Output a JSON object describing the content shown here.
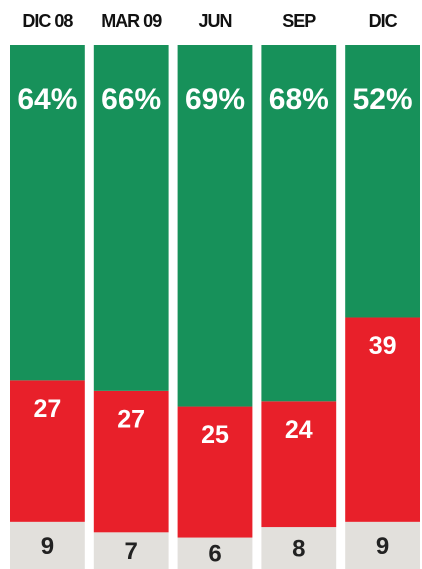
{
  "chart_data": {
    "type": "stacked_bar",
    "categories": [
      "DIC 08",
      "MAR 09",
      "JUN",
      "SEP",
      "DIC"
    ],
    "series": [
      {
        "color": "#17915a",
        "values": [
          64,
          66,
          69,
          68,
          52
        ],
        "value_labels": [
          "64%",
          "66%",
          "69%",
          "68%",
          "52%"
        ]
      },
      {
        "color": "#e8202a",
        "values": [
          27,
          27,
          25,
          24,
          39
        ]
      },
      {
        "color": "#e2e0dc",
        "values": [
          9,
          7,
          6,
          8,
          9
        ]
      }
    ],
    "ylim": [
      0,
      100
    ]
  }
}
